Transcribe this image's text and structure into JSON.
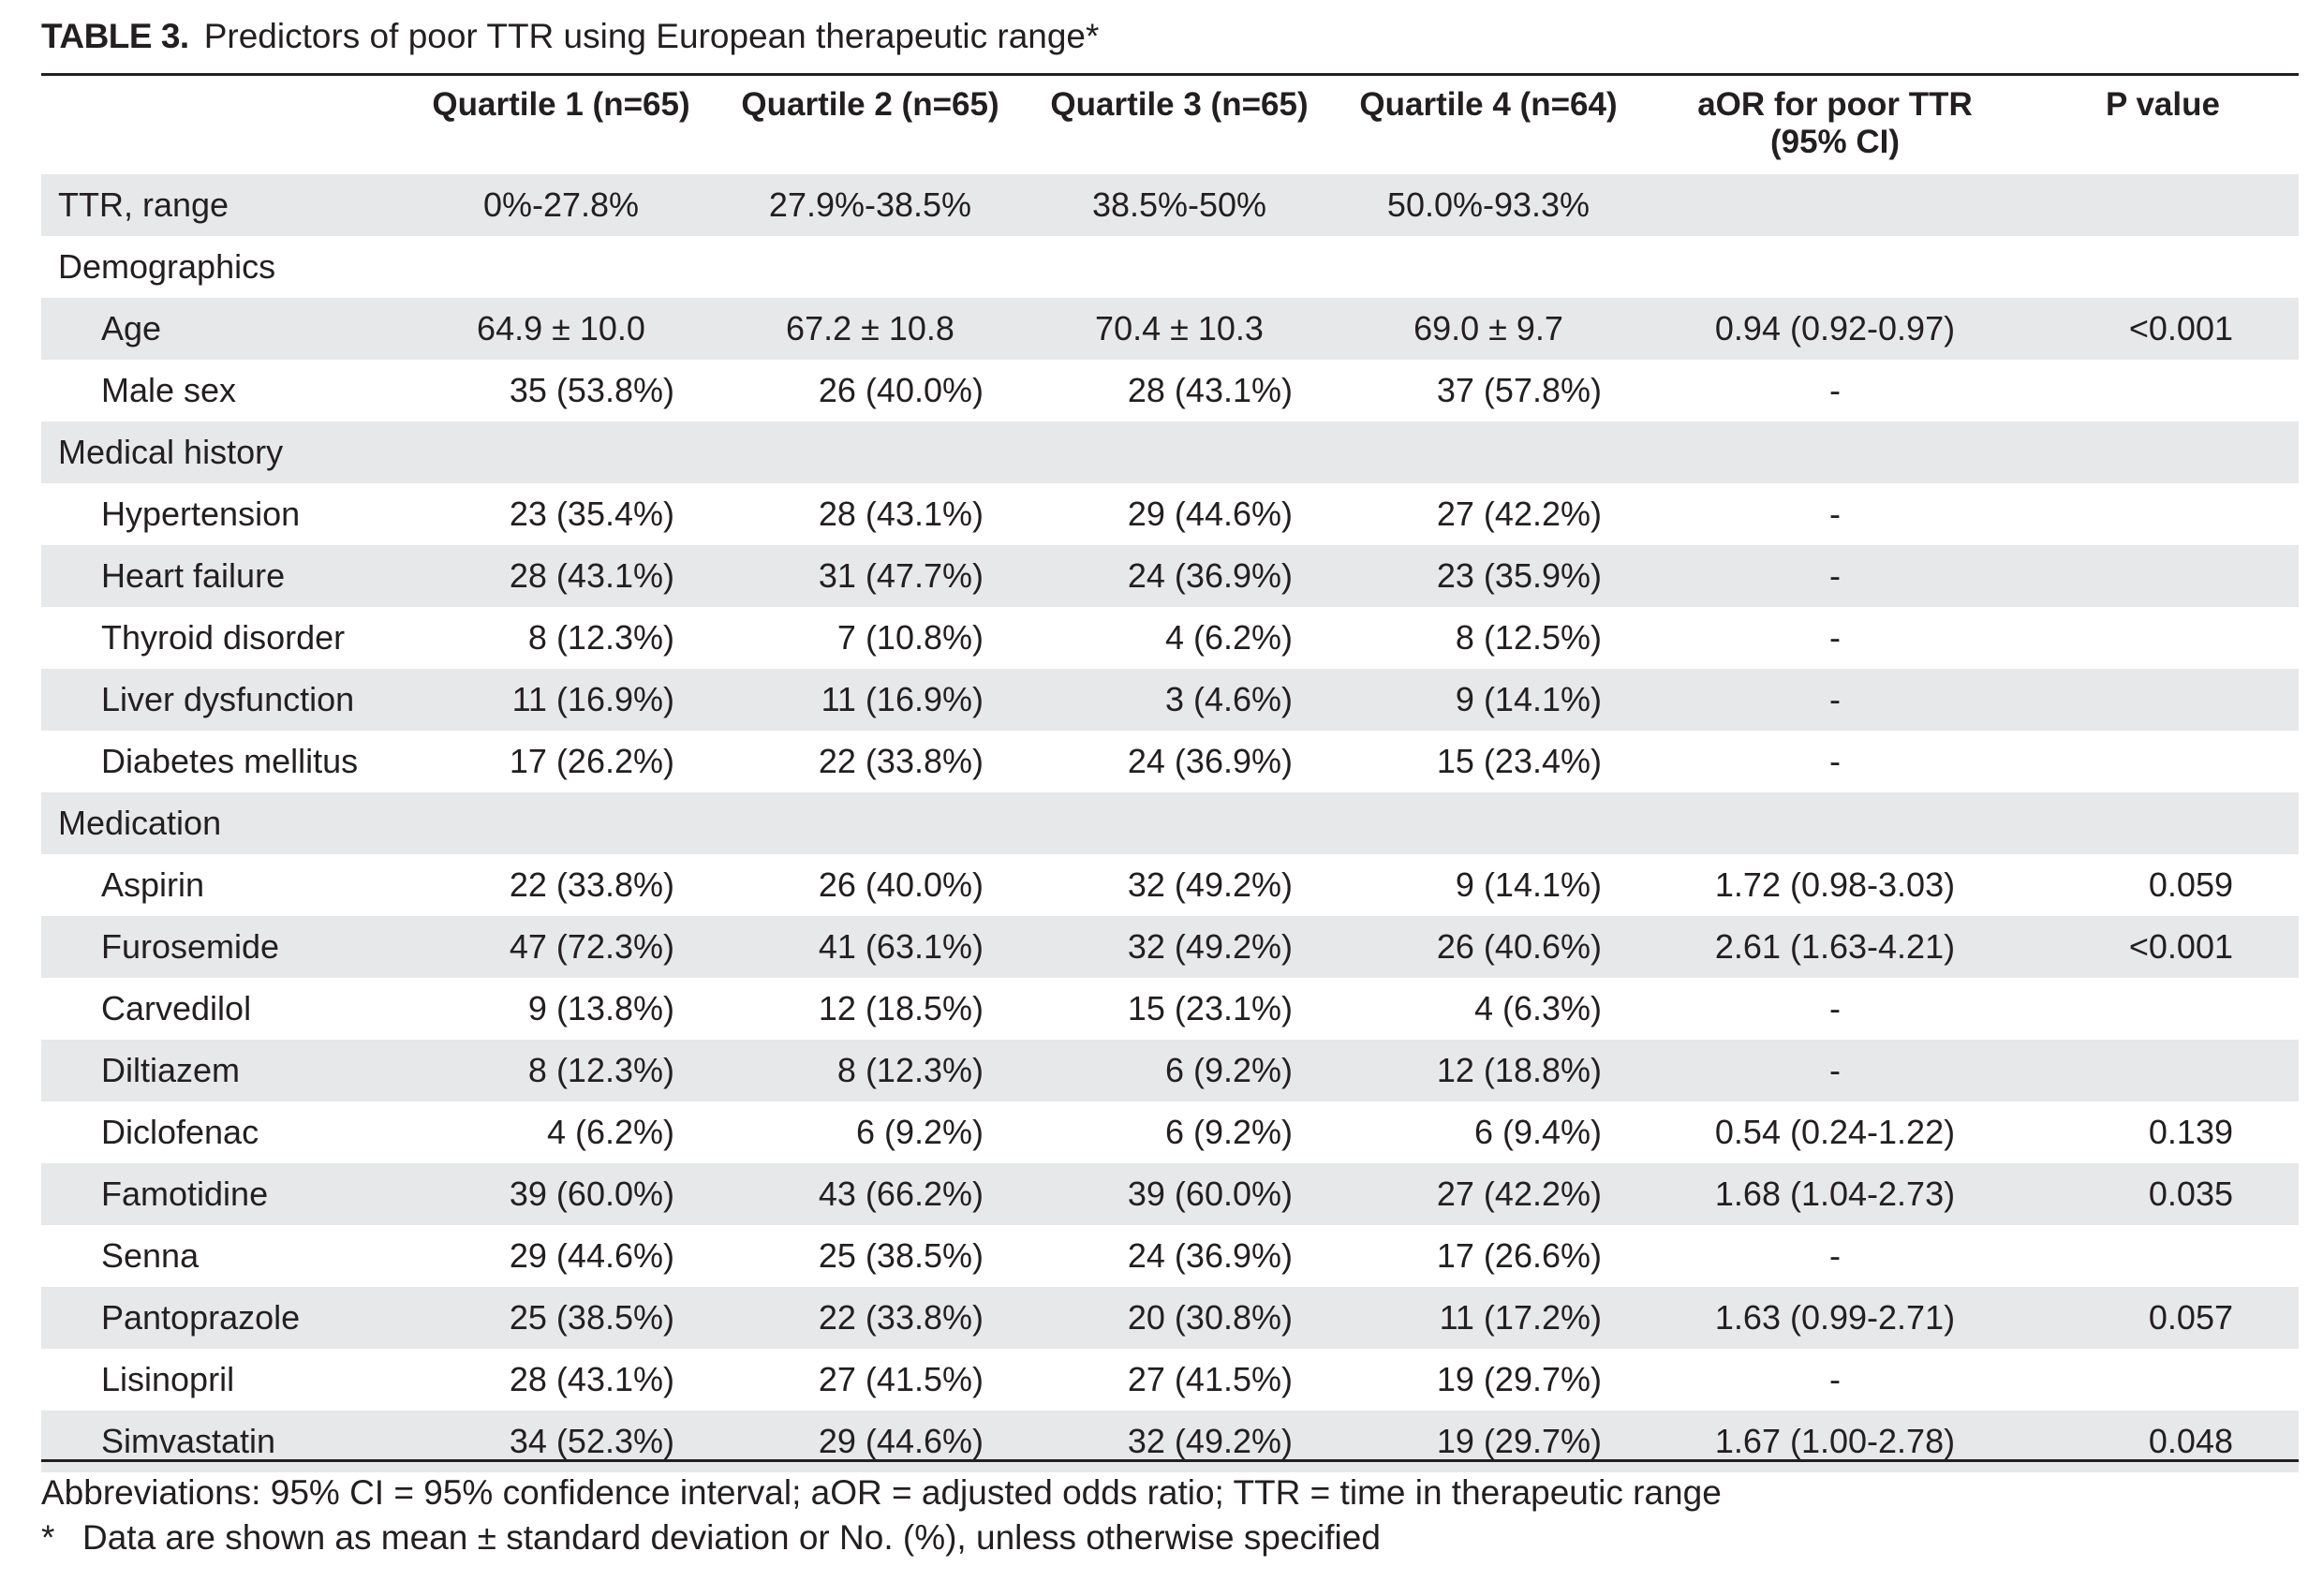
{
  "title": {
    "label": "TABLE 3.",
    "text": "Predictors of poor TTR using European therapeutic range*"
  },
  "table": {
    "headers": [
      "",
      "Quartile 1 (n=65)",
      "Quartile 2 (n=65)",
      "Quartile 3 (n=65)",
      "Quartile 4 (n=64)",
      "aOR for poor TTR (95% CI)",
      "P value"
    ],
    "rows": [
      {
        "label": "TTR, range",
        "indent": false,
        "cells": [
          "0%-27.8%",
          "27.9%-38.5%",
          "38.5%-50%",
          "50.0%-93.3%",
          "",
          ""
        ]
      },
      {
        "label": "Demographics",
        "indent": false,
        "cells": [
          "",
          "",
          "",
          "",
          "",
          ""
        ]
      },
      {
        "label": "Age",
        "indent": true,
        "cells": [
          "64.9 ± 10.0",
          "67.2 ± 10.8",
          "70.4 ± 10.3",
          "69.0 ± 9.7",
          "0.94 (0.92-0.97)",
          "<0.001"
        ]
      },
      {
        "label": "Male sex",
        "indent": true,
        "cells": [
          "35 (53.8%)",
          "26 (40.0%)",
          "28 (43.1%)",
          "37 (57.8%)",
          "-",
          ""
        ]
      },
      {
        "label": "Medical history",
        "indent": false,
        "cells": [
          "",
          "",
          "",
          "",
          "",
          ""
        ]
      },
      {
        "label": "Hypertension",
        "indent": true,
        "cells": [
          "23 (35.4%)",
          "28 (43.1%)",
          "29 (44.6%)",
          "27 (42.2%)",
          "-",
          ""
        ]
      },
      {
        "label": "Heart failure",
        "indent": true,
        "cells": [
          "28 (43.1%)",
          "31 (47.7%)",
          "24 (36.9%)",
          "23 (35.9%)",
          "-",
          ""
        ]
      },
      {
        "label": "Thyroid disorder",
        "indent": true,
        "cells": [
          "8 (12.3%)",
          "7 (10.8%)",
          "4 (6.2%)",
          "8 (12.5%)",
          "-",
          ""
        ]
      },
      {
        "label": "Liver dysfunction",
        "indent": true,
        "cells": [
          "11 (16.9%)",
          "11 (16.9%)",
          "3 (4.6%)",
          "9 (14.1%)",
          "-",
          ""
        ]
      },
      {
        "label": "Diabetes mellitus",
        "indent": true,
        "cells": [
          "17 (26.2%)",
          "22 (33.8%)",
          "24 (36.9%)",
          "15 (23.4%)",
          "-",
          ""
        ]
      },
      {
        "label": "Medication",
        "indent": false,
        "cells": [
          "",
          "",
          "",
          "",
          "",
          ""
        ]
      },
      {
        "label": "Aspirin",
        "indent": true,
        "cells": [
          "22 (33.8%)",
          "26 (40.0%)",
          "32 (49.2%)",
          "9 (14.1%)",
          "1.72 (0.98-3.03)",
          "0.059"
        ]
      },
      {
        "label": "Furosemide",
        "indent": true,
        "cells": [
          "47 (72.3%)",
          "41 (63.1%)",
          "32 (49.2%)",
          "26 (40.6%)",
          "2.61 (1.63-4.21)",
          "<0.001"
        ]
      },
      {
        "label": "Carvedilol",
        "indent": true,
        "cells": [
          "9 (13.8%)",
          "12 (18.5%)",
          "15 (23.1%)",
          "4 (6.3%)",
          "-",
          ""
        ]
      },
      {
        "label": "Diltiazem",
        "indent": true,
        "cells": [
          "8 (12.3%)",
          "8 (12.3%)",
          "6 (9.2%)",
          "12 (18.8%)",
          "-",
          ""
        ]
      },
      {
        "label": "Diclofenac",
        "indent": true,
        "cells": [
          "4 (6.2%)",
          "6 (9.2%)",
          "6 (9.2%)",
          "6 (9.4%)",
          "0.54 (0.24-1.22)",
          "0.139"
        ]
      },
      {
        "label": "Famotidine",
        "indent": true,
        "cells": [
          "39 (60.0%)",
          "43 (66.2%)",
          "39 (60.0%)",
          "27 (42.2%)",
          "1.68 (1.04-2.73)",
          "0.035"
        ]
      },
      {
        "label": "Senna",
        "indent": true,
        "cells": [
          "29 (44.6%)",
          "25 (38.5%)",
          "24 (36.9%)",
          "17 (26.6%)",
          "-",
          ""
        ]
      },
      {
        "label": "Pantoprazole",
        "indent": true,
        "cells": [
          "25 (38.5%)",
          "22 (33.8%)",
          "20 (30.8%)",
          "11 (17.2%)",
          "1.63 (0.99-2.71)",
          "0.057"
        ]
      },
      {
        "label": "Lisinopril",
        "indent": true,
        "cells": [
          "28 (43.1%)",
          "27 (41.5%)",
          "27 (41.5%)",
          "19 (29.7%)",
          "-",
          ""
        ]
      },
      {
        "label": "Simvastatin",
        "indent": true,
        "cells": [
          "34 (52.3%)",
          "29 (44.6%)",
          "32 (49.2%)",
          "19 (29.7%)",
          "1.67 (1.00-2.78)",
          "0.048"
        ]
      }
    ]
  },
  "footnotes": {
    "abbreviations": "Abbreviations: 95% CI = 95% confidence interval; aOR = adjusted odds ratio; TTR = time in therapeutic range",
    "star": "*",
    "note": "Data are shown as mean ± standard deviation or No. (%), unless otherwise specified"
  }
}
